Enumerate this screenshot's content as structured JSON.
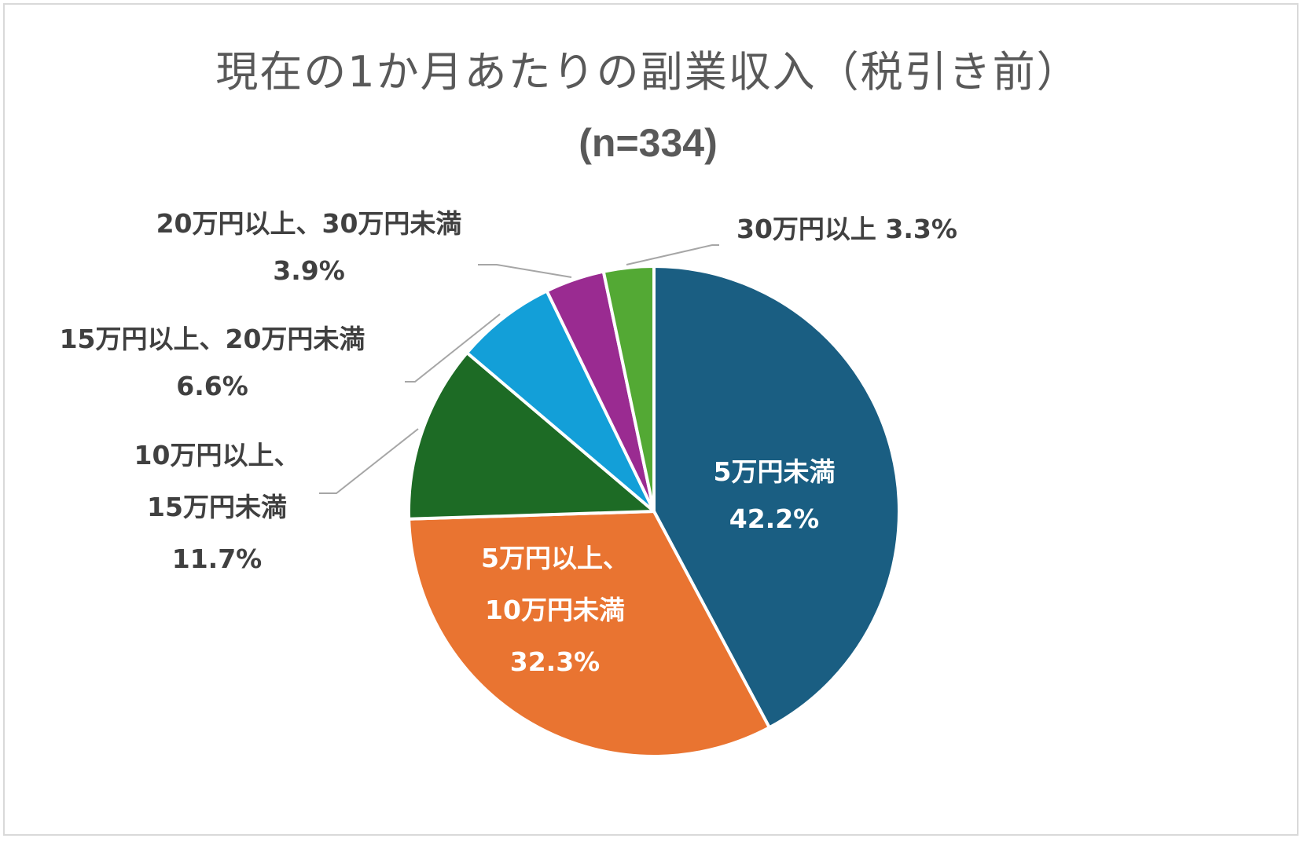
{
  "chart_data": {
    "type": "pie",
    "title": "現在の1か月あたりの副業収入（税引き前）",
    "subtitle": "(n=334)",
    "unit": "%",
    "slices": [
      {
        "label_lines": [
          "5万円未満"
        ],
        "value": 42.2,
        "value_text": "42.2%",
        "color": "#1a5e82"
      },
      {
        "label_lines": [
          "5万円以上、",
          "10万円未満"
        ],
        "value": 32.3,
        "value_text": "32.3%",
        "color": "#e97431"
      },
      {
        "label_lines": [
          "10万円以上、",
          "15万円未満"
        ],
        "value": 11.7,
        "value_text": "11.7%",
        "color": "#1d6b25"
      },
      {
        "label_lines": [
          "15万円以上、20万円未満"
        ],
        "value": 6.6,
        "value_text": "6.6%",
        "color": "#139fd8"
      },
      {
        "label_lines": [
          "20万円以上、30万円未満"
        ],
        "value": 3.9,
        "value_text": "3.9%",
        "color": "#9a2b91"
      },
      {
        "label_lines": [
          "30万円以上"
        ],
        "value": 3.3,
        "value_text": "3.3%",
        "color": "#53a934"
      }
    ]
  }
}
